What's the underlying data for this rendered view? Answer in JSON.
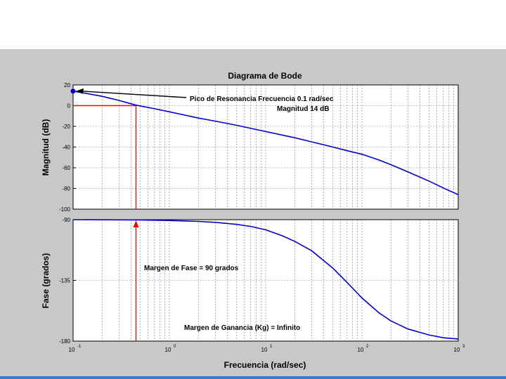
{
  "figure": {
    "colors": {
      "background": "#c8c8c8",
      "plot_background": "#ffffff",
      "curve": "#0000cc",
      "marker": "#ff0000",
      "grid": "#808080"
    }
  },
  "chart_data": [
    {
      "type": "line",
      "title": "Diagrama de Bode",
      "xlabel": "",
      "ylabel": "Magnitud (dB)",
      "xscale": "log",
      "xlim": [
        0.1,
        1000
      ],
      "ylim": [
        -100,
        20
      ],
      "yticks": [
        "20",
        "0",
        "-20",
        "-40",
        "-60",
        "-80",
        "-100"
      ],
      "grid": true,
      "series": [
        {
          "x": [
            0.1,
            0.2,
            0.3,
            0.45,
            0.7,
            1,
            2,
            3,
            5,
            7,
            10,
            20,
            30,
            50,
            70,
            100,
            150,
            200,
            300,
            500,
            700,
            1000
          ],
          "y": [
            14,
            9,
            5,
            0.5,
            -3,
            -6,
            -12,
            -15,
            -19,
            -22,
            -25,
            -31,
            -35,
            -40,
            -43.5,
            -47,
            -52.5,
            -57,
            -64,
            -73,
            -79.5,
            -86
          ]
        }
      ],
      "annotations": [
        {
          "text": "Pico de Resonancia  Frecuencia 0.1 rad/sec",
          "x": 0.1,
          "y": 14
        },
        {
          "text": "Magnitud 14 dB",
          "x": 0.1,
          "y": 14
        }
      ],
      "markers": {
        "gain_crossover_x": 0.45,
        "reference_y": 0
      }
    },
    {
      "type": "line",
      "title": "",
      "xlabel": "Frecuencia (rad/sec)",
      "ylabel": "Fase (grados)",
      "xscale": "log",
      "xlim": [
        0.1,
        1000
      ],
      "ylim": [
        -180,
        -90
      ],
      "yticks": [
        "-90",
        "-135",
        "-180"
      ],
      "xticks": [
        0.1,
        1,
        10,
        100,
        1000
      ],
      "grid": true,
      "series": [
        {
          "x": [
            0.1,
            0.5,
            1,
            2,
            3,
            5,
            7,
            10,
            15,
            20,
            30,
            50,
            70,
            100,
            150,
            200,
            300,
            500,
            700,
            1000
          ],
          "y": [
            -90,
            -90.2,
            -90.6,
            -91.3,
            -92,
            -93.5,
            -95,
            -97.5,
            -102,
            -106,
            -113,
            -126,
            -136.5,
            -148,
            -159,
            -165,
            -171,
            -175.5,
            -177.5,
            -178.5
          ]
        }
      ],
      "annotations": [
        {
          "text": "Margen de Fase  = 90 grados",
          "x": 0.45,
          "y": -125
        },
        {
          "text": "Margen de Ganancia (Kg) =  Infinito",
          "x": 2.5,
          "y": -172
        }
      ],
      "markers": {
        "phase_margin_x": 0.45,
        "phase_margin_deg": 90
      }
    }
  ],
  "tick_labels": {
    "x_bases": [
      "10",
      "10",
      "10",
      "10",
      "10"
    ],
    "x_exps": [
      "-1",
      "0",
      "1",
      "2",
      "3"
    ]
  }
}
